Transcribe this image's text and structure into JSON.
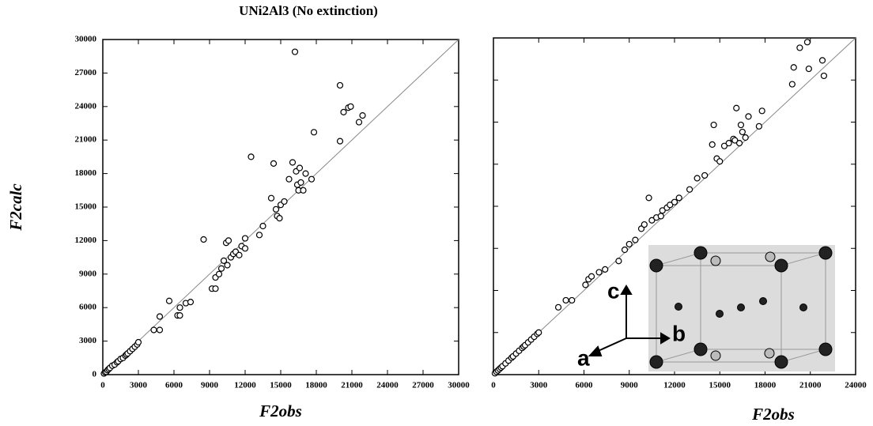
{
  "chart_data": [
    {
      "type": "scatter",
      "title": "UNi2Al3 (No extinction)",
      "x_label": "F2obs",
      "y_label": "F2calc",
      "xlim": [
        0,
        30000
      ],
      "ylim": [
        0,
        30000
      ],
      "xticks": [
        0,
        3000,
        6000,
        9000,
        12000,
        15000,
        18000,
        21000,
        24000,
        27000,
        30000
      ],
      "yticks": [
        0,
        3000,
        6000,
        9000,
        12000,
        15000,
        18000,
        21000,
        24000,
        27000,
        30000
      ],
      "show_ytick_labels": true,
      "color": "#000000",
      "x": [
        100,
        200,
        300,
        400,
        500,
        600,
        800,
        1000,
        1200,
        1300,
        1500,
        1700,
        1900,
        2000,
        2100,
        2300,
        2500,
        2700,
        2900,
        3000,
        4300,
        4800,
        4800,
        5600,
        6300,
        6500,
        6500,
        7000,
        7400,
        8500,
        9200,
        9500,
        9500,
        9800,
        10000,
        10200,
        10400,
        10600,
        10500,
        10800,
        11000,
        11200,
        11500,
        11700,
        12000,
        12000,
        12500,
        13200,
        13500,
        14200,
        14400,
        14600,
        14700,
        14900,
        15000,
        15300,
        15700,
        16000,
        16200,
        16300,
        16400,
        16500,
        16600,
        16700,
        16900,
        17100,
        17600,
        17800,
        20000,
        20000,
        20300,
        20700,
        20900,
        21600,
        21900
      ],
      "values": [
        100,
        200,
        250,
        400,
        500,
        600,
        800,
        900,
        1100,
        1200,
        1400,
        1500,
        1700,
        1800,
        1900,
        2100,
        2300,
        2500,
        2700,
        2900,
        4000,
        4000,
        5200,
        6600,
        5300,
        5300,
        6000,
        6400,
        6500,
        12100,
        7700,
        7700,
        8700,
        9000,
        9500,
        10200,
        11800,
        12000,
        9800,
        10500,
        10800,
        11000,
        10700,
        11500,
        12200,
        11300,
        19500,
        12500,
        13300,
        15800,
        18900,
        14800,
        14200,
        14000,
        15200,
        15500,
        17500,
        19000,
        28900,
        18200,
        17000,
        16500,
        18500,
        17200,
        16500,
        18000,
        17500,
        21700,
        25900,
        20900,
        23500,
        23900,
        24000,
        22600,
        23200
      ]
    },
    {
      "type": "scatter",
      "x_label": "F2obs",
      "xlim": [
        0,
        24000
      ],
      "ylim": [
        0,
        24000
      ],
      "xticks": [
        0,
        3000,
        6000,
        9000,
        12000,
        15000,
        18000,
        21000,
        24000
      ],
      "yticks": [
        0,
        3000,
        6000,
        9000,
        12000,
        15000,
        18000,
        21000,
        24000
      ],
      "show_ytick_labels": false,
      "color": "#000000",
      "x": [
        100,
        200,
        300,
        400,
        500,
        600,
        800,
        1000,
        1200,
        1300,
        1500,
        1700,
        1900,
        2000,
        2100,
        2300,
        2500,
        2700,
        2900,
        3000,
        4300,
        4800,
        5200,
        6100,
        6300,
        6500,
        7000,
        7400,
        8300,
        8700,
        9000,
        9400,
        9800,
        10000,
        10300,
        10500,
        10800,
        11100,
        11200,
        11500,
        11700,
        12000,
        12300,
        13000,
        13500,
        14000,
        14500,
        14600,
        14800,
        15000,
        15300,
        15600,
        15900,
        16000,
        16100,
        16300,
        16400,
        16500,
        16700,
        16900,
        17600,
        17800,
        19800,
        19900,
        20300,
        20800,
        20900,
        21800,
        21900
      ],
      "values": [
        100,
        200,
        300,
        400,
        500,
        600,
        800,
        1000,
        1200,
        1300,
        1500,
        1700,
        1900,
        2000,
        2100,
        2300,
        2500,
        2700,
        2900,
        3000,
        4800,
        5300,
        5300,
        6400,
        6800,
        7000,
        7300,
        7500,
        8100,
        8900,
        9300,
        9600,
        10400,
        10700,
        12600,
        11000,
        11200,
        11300,
        11700,
        11900,
        12100,
        12300,
        12600,
        13200,
        14000,
        14200,
        16400,
        17800,
        15400,
        15200,
        16300,
        16500,
        16800,
        16700,
        19000,
        16500,
        17800,
        17300,
        16900,
        18400,
        17700,
        18800,
        20700,
        21900,
        23300,
        23700,
        21800,
        22400,
        21300
      ]
    }
  ],
  "inset": {
    "axis_labels": [
      "a",
      "b",
      "c"
    ]
  }
}
